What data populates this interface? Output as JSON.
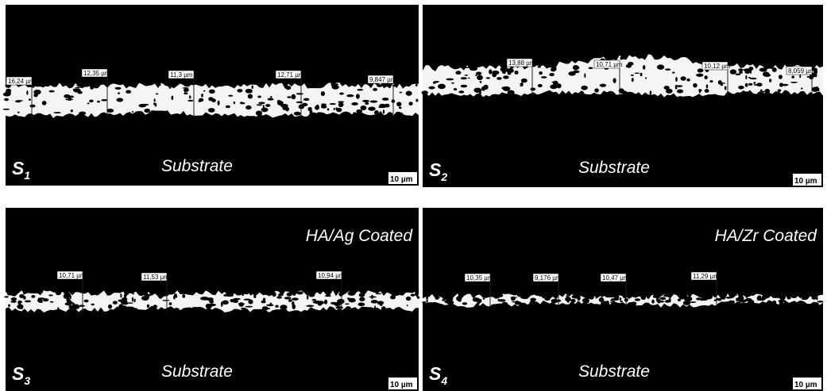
{
  "panels": [
    {
      "label": "S",
      "label_subscript": "1",
      "region_label": "Substrate",
      "scale_bar": "10 µm",
      "measurements": [
        "16,24 µm",
        "12,35 µm",
        "11,3 µm",
        "12,71 µm",
        "9,847 µm"
      ]
    },
    {
      "label": "S",
      "label_subscript": "2",
      "region_label": "Substrate",
      "scale_bar": "10 µm",
      "measurements": [
        "13,88 µm",
        "10,71 µm",
        "10,12 µm",
        "8,059 µm"
      ]
    },
    {
      "label": "S",
      "label_subscript": "3",
      "region_label": "Substrate",
      "coating_label": "HA/Ag Coated",
      "scale_bar": "10 µm",
      "measurements": [
        "10,71 µm",
        "11,53 µm",
        "10,94 µm"
      ]
    },
    {
      "label": "S",
      "label_subscript": "4",
      "region_label": "Substrate",
      "coating_label": "HA/Zr Coated",
      "scale_bar": "10 µm",
      "measurements": [
        "10,35 µm",
        "9,176 µm",
        "10,47 µm",
        "11,29 µm"
      ]
    }
  ]
}
